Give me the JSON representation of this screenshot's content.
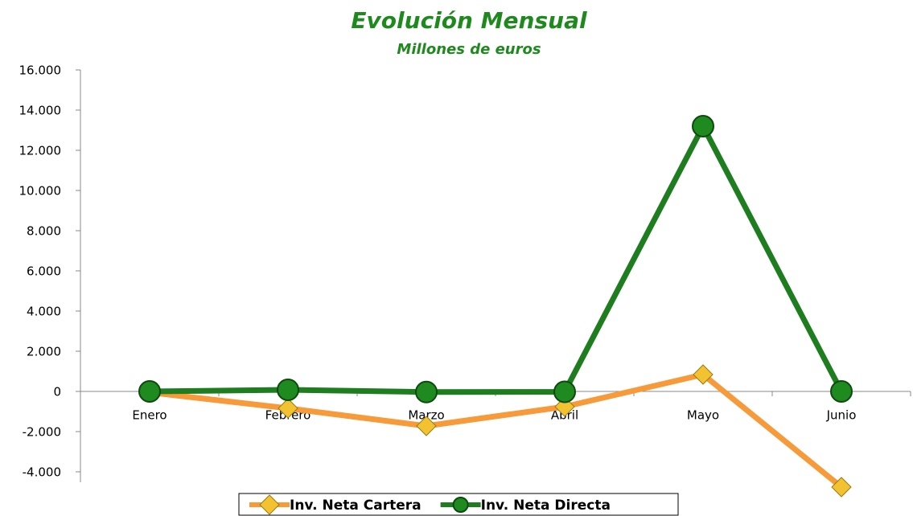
{
  "chart_data": {
    "type": "line",
    "title": "Evolución Mensual",
    "subtitle": "Millones de euros",
    "categories": [
      "Enero",
      "Febrero",
      "Marzo",
      "Abril",
      "Mayo",
      "Junio"
    ],
    "series": [
      {
        "name": "Inv. Neta Cartera",
        "color": "#f79a3a",
        "marker": "diamond",
        "values": [
          -50,
          -840,
          -1720,
          -760,
          840,
          -4760
        ]
      },
      {
        "name": "Inv. Neta Directa",
        "color": "#1e7d1e",
        "marker": "circle",
        "values": [
          0,
          80,
          -30,
          -20,
          13200,
          0
        ]
      }
    ],
    "ylim": [
      -4000,
      16000
    ],
    "yticks": [
      {
        "value": -4000,
        "label": "-4.000"
      },
      {
        "value": -2000,
        "label": "-2.000"
      },
      0,
      {
        "value": 2000,
        "label": "2.000"
      },
      {
        "value": 4000,
        "label": "4.000"
      },
      {
        "value": 6000,
        "label": "6.000"
      },
      {
        "value": 8000,
        "label": "8.000"
      },
      {
        "value": 10000,
        "label": "10.000"
      },
      {
        "value": 12000,
        "label": "12.000"
      },
      {
        "value": 14000,
        "label": "14.000"
      },
      {
        "value": 16000,
        "label": "16.000"
      }
    ],
    "grid": false,
    "legend": "bottom"
  }
}
